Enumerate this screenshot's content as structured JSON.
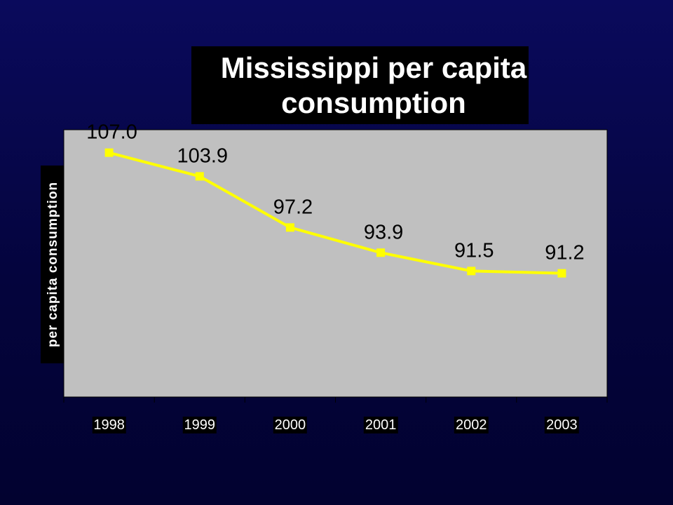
{
  "chart_data": {
    "type": "line",
    "title": "Mississippi per capita consumption",
    "ylabel": "per capita consumption",
    "xlabel": "",
    "categories": [
      "1998",
      "1999",
      "2000",
      "2001",
      "2002",
      "2003"
    ],
    "series": [
      {
        "values": [
          107.0,
          103.9,
          97.2,
          93.9,
          91.5,
          91.2
        ],
        "data_labels": [
          "107.0",
          "103.9",
          "97.2",
          "93.9",
          "91.5",
          "91.2"
        ]
      }
    ],
    "ylim": [
      75,
      110
    ],
    "grid": false,
    "legend": "none"
  },
  "colors": {
    "background": "#04043d",
    "plot_area": "#c0c0c0",
    "line": "#ffff00",
    "title_box": "#000000",
    "title_text": "#ffffff"
  }
}
